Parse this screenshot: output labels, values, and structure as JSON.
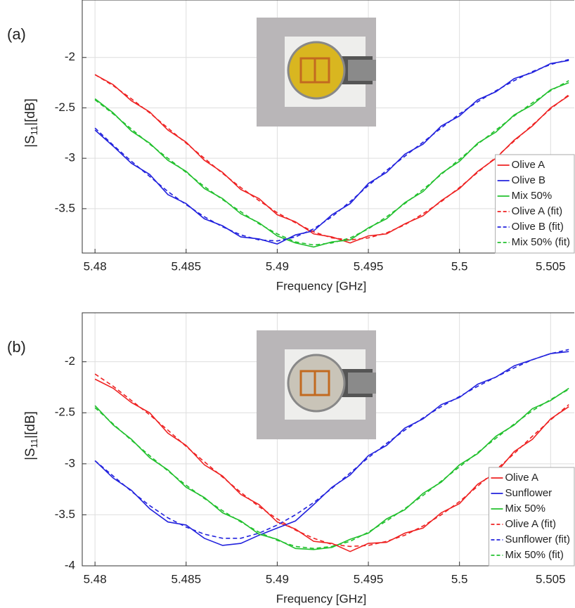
{
  "chart_data": [
    {
      "type": "line",
      "panel_label": "(a)",
      "xlabel": "Frequency [GHz]",
      "ylabel": [
        "|S",
        "11",
        "|[dB]"
      ],
      "xlim": [
        5.4793,
        5.5063
      ],
      "ylim": [
        -3.94,
        -1.43
      ],
      "xticks": [
        5.48,
        5.485,
        5.49,
        5.495,
        5.5,
        5.505
      ],
      "yticks": [
        -3.5,
        -3,
        -2.5,
        -2
      ],
      "grid": true,
      "legend": "lower right",
      "x": [
        5.48,
        5.481,
        5.482,
        5.483,
        5.484,
        5.485,
        5.486,
        5.487,
        5.488,
        5.489,
        5.49,
        5.491,
        5.492,
        5.493,
        5.494,
        5.495,
        5.496,
        5.497,
        5.498,
        5.499,
        5.5,
        5.501,
        5.502,
        5.503,
        5.504,
        5.505,
        5.506
      ],
      "series": [
        {
          "name": "Olive A",
          "color": "#ee2222",
          "dash": false,
          "values": [
            -2.17,
            -2.27,
            -2.43,
            -2.54,
            -2.72,
            -2.84,
            -3.02,
            -3.14,
            -3.31,
            -3.4,
            -3.56,
            -3.63,
            -3.75,
            -3.78,
            -3.84,
            -3.77,
            -3.75,
            -3.65,
            -3.57,
            -3.42,
            -3.3,
            -3.13,
            -3.0,
            -2.82,
            -2.68,
            -2.5,
            -2.38
          ]
        },
        {
          "name": "Olive B",
          "color": "#2222dd",
          "dash": false,
          "values": [
            -2.72,
            -2.88,
            -3.05,
            -3.16,
            -3.36,
            -3.45,
            -3.6,
            -3.67,
            -3.78,
            -3.8,
            -3.85,
            -3.76,
            -3.72,
            -3.56,
            -3.45,
            -3.25,
            -3.14,
            -2.96,
            -2.86,
            -2.68,
            -2.58,
            -2.42,
            -2.34,
            -2.21,
            -2.15,
            -2.06,
            -2.03
          ]
        },
        {
          "name": "Mix 50%",
          "color": "#22c02e",
          "dash": false,
          "values": [
            -2.41,
            -2.55,
            -2.73,
            -2.85,
            -3.02,
            -3.13,
            -3.3,
            -3.4,
            -3.55,
            -3.64,
            -3.77,
            -3.84,
            -3.88,
            -3.83,
            -3.81,
            -3.69,
            -3.6,
            -3.44,
            -3.33,
            -3.15,
            -3.03,
            -2.85,
            -2.74,
            -2.57,
            -2.47,
            -2.32,
            -2.25
          ]
        },
        {
          "name": "Olive A (fit)",
          "color": "#ee2222",
          "dash": true,
          "values": [
            -2.17,
            -2.28,
            -2.41,
            -2.55,
            -2.7,
            -2.85,
            -3.0,
            -3.15,
            -3.29,
            -3.42,
            -3.54,
            -3.64,
            -3.73,
            -3.79,
            -3.81,
            -3.79,
            -3.74,
            -3.66,
            -3.55,
            -3.43,
            -3.29,
            -3.14,
            -2.99,
            -2.83,
            -2.67,
            -2.51,
            -2.37
          ]
        },
        {
          "name": "Olive B (fit)",
          "color": "#2222dd",
          "dash": true,
          "values": [
            -2.7,
            -2.87,
            -3.03,
            -3.18,
            -3.33,
            -3.46,
            -3.58,
            -3.68,
            -3.76,
            -3.81,
            -3.82,
            -3.78,
            -3.7,
            -3.58,
            -3.43,
            -3.27,
            -3.12,
            -2.98,
            -2.84,
            -2.7,
            -2.56,
            -2.44,
            -2.33,
            -2.23,
            -2.14,
            -2.07,
            -2.02
          ]
        },
        {
          "name": "Mix 50% (fit)",
          "color": "#22c02e",
          "dash": true,
          "values": [
            -2.42,
            -2.56,
            -2.71,
            -2.86,
            -3.0,
            -3.14,
            -3.28,
            -3.41,
            -3.53,
            -3.65,
            -3.75,
            -3.83,
            -3.86,
            -3.84,
            -3.79,
            -3.7,
            -3.58,
            -3.45,
            -3.31,
            -3.16,
            -3.01,
            -2.86,
            -2.72,
            -2.58,
            -2.45,
            -2.33,
            -2.23
          ]
        }
      ]
    },
    {
      "type": "line",
      "panel_label": "(b)",
      "xlabel": "Frequency [GHz]",
      "ylabel": [
        "|S",
        "11",
        "|[dB]"
      ],
      "xlim": [
        5.4793,
        5.5063
      ],
      "ylim": [
        -4,
        -1.52
      ],
      "xticks": [
        5.48,
        5.485,
        5.49,
        5.495,
        5.5,
        5.505
      ],
      "yticks": [
        -4,
        -3.5,
        -3,
        -2.5,
        -2
      ],
      "grid": true,
      "legend": "lower right",
      "x": [
        5.48,
        5.481,
        5.482,
        5.483,
        5.484,
        5.485,
        5.486,
        5.487,
        5.488,
        5.489,
        5.49,
        5.491,
        5.492,
        5.493,
        5.494,
        5.495,
        5.496,
        5.497,
        5.498,
        5.499,
        5.5,
        5.501,
        5.502,
        5.503,
        5.504,
        5.505,
        5.506
      ],
      "series": [
        {
          "name": "Olive A",
          "color": "#ee2222",
          "dash": false,
          "values": [
            -2.17,
            -2.26,
            -2.4,
            -2.5,
            -2.7,
            -2.82,
            -3.01,
            -3.12,
            -3.3,
            -3.4,
            -3.57,
            -3.64,
            -3.76,
            -3.78,
            -3.86,
            -3.78,
            -3.77,
            -3.68,
            -3.63,
            -3.48,
            -3.39,
            -3.2,
            -3.09,
            -2.88,
            -2.76,
            -2.56,
            -2.44
          ]
        },
        {
          "name": "Sunflower",
          "color": "#2222dd",
          "dash": false,
          "values": [
            -2.97,
            -3.14,
            -3.26,
            -3.44,
            -3.57,
            -3.6,
            -3.73,
            -3.8,
            -3.78,
            -3.7,
            -3.63,
            -3.56,
            -3.4,
            -3.23,
            -3.11,
            -2.92,
            -2.82,
            -2.65,
            -2.56,
            -2.42,
            -2.35,
            -2.22,
            -2.15,
            -2.04,
            -1.98,
            -1.92,
            -1.9
          ]
        },
        {
          "name": "Mix 50%",
          "color": "#22c02e",
          "dash": false,
          "values": [
            -2.43,
            -2.62,
            -2.76,
            -2.94,
            -3.06,
            -3.23,
            -3.33,
            -3.48,
            -3.56,
            -3.69,
            -3.74,
            -3.83,
            -3.84,
            -3.82,
            -3.74,
            -3.68,
            -3.54,
            -3.45,
            -3.29,
            -3.18,
            -3.01,
            -2.9,
            -2.73,
            -2.62,
            -2.46,
            -2.38,
            -2.26
          ]
        },
        {
          "name": "Olive A (fit)",
          "color": "#ee2222",
          "dash": true,
          "values": [
            -2.12,
            -2.24,
            -2.38,
            -2.52,
            -2.67,
            -2.83,
            -2.98,
            -3.13,
            -3.28,
            -3.42,
            -3.54,
            -3.65,
            -3.73,
            -3.79,
            -3.81,
            -3.8,
            -3.76,
            -3.7,
            -3.61,
            -3.5,
            -3.37,
            -3.22,
            -3.06,
            -2.9,
            -2.73,
            -2.57,
            -2.42
          ]
        },
        {
          "name": "Sunflower (fit)",
          "color": "#2222dd",
          "dash": true,
          "values": [
            -2.97,
            -3.12,
            -3.27,
            -3.41,
            -3.53,
            -3.62,
            -3.69,
            -3.73,
            -3.73,
            -3.68,
            -3.6,
            -3.5,
            -3.38,
            -3.24,
            -3.09,
            -2.94,
            -2.8,
            -2.67,
            -2.55,
            -2.44,
            -2.34,
            -2.24,
            -2.15,
            -2.06,
            -1.98,
            -1.92,
            -1.88
          ]
        },
        {
          "name": "Mix 50% (fit)",
          "color": "#22c02e",
          "dash": true,
          "values": [
            -2.45,
            -2.61,
            -2.77,
            -2.92,
            -3.07,
            -3.21,
            -3.34,
            -3.46,
            -3.57,
            -3.67,
            -3.75,
            -3.81,
            -3.83,
            -3.81,
            -3.76,
            -3.67,
            -3.56,
            -3.44,
            -3.31,
            -3.17,
            -3.03,
            -2.89,
            -2.75,
            -2.61,
            -2.48,
            -2.37,
            -2.27
          ]
        }
      ]
    }
  ]
}
